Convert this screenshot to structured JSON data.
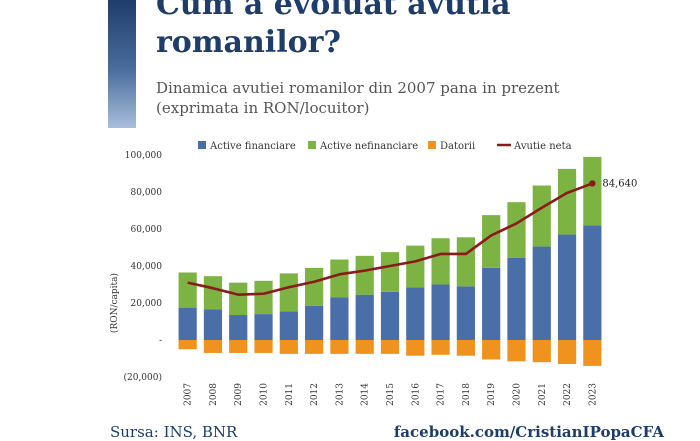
{
  "header": {
    "title": "Cum a evoluat avutia romanilor?",
    "subtitle_line1": "Dinamica avutiei romanilor din 2007 pana in prezent",
    "subtitle_line2": "(exprimata in RON/locuitor)"
  },
  "footer": {
    "source": "Sursa: INS, BNR",
    "facebook": "facebook.com/CristianIPopaCFA"
  },
  "colors": {
    "title": "#1f3d6b",
    "financiare": "#4a6ea8",
    "nefinanciare": "#7db343",
    "datorii": "#f0921e",
    "neta": "#8b1a1a"
  },
  "chart_data": {
    "type": "bar",
    "stacked": true,
    "categories": [
      "2007",
      "2008",
      "2009",
      "2010",
      "2011",
      "2012",
      "2013",
      "2014",
      "2015",
      "2016",
      "2017",
      "2018",
      "2019",
      "2020",
      "2021",
      "2022",
      "2023"
    ],
    "series": [
      {
        "name": "Active financiare",
        "type": "bar",
        "values": [
          17500,
          16500,
          13500,
          14000,
          15500,
          18500,
          23000,
          24500,
          26000,
          28500,
          30000,
          29000,
          39000,
          44500,
          50500,
          57000,
          62000
        ]
      },
      {
        "name": "Active nefinanciare",
        "type": "bar",
        "values": [
          19000,
          18000,
          17500,
          18000,
          20500,
          20500,
          20500,
          21000,
          21500,
          22500,
          25000,
          26500,
          28500,
          30000,
          33000,
          35500,
          37000
        ]
      },
      {
        "name": "Datorii",
        "type": "bar",
        "values": [
          -5000,
          -7000,
          -7000,
          -7000,
          -7500,
          -7500,
          -7500,
          -7500,
          -7500,
          -8500,
          -8000,
          -8500,
          -10500,
          -11500,
          -12000,
          -13000,
          -14000
        ]
      },
      {
        "name": "Avutie neta",
        "type": "line",
        "values": [
          31000,
          28000,
          24500,
          25000,
          28500,
          31500,
          35500,
          37500,
          40000,
          42500,
          46500,
          46500,
          56500,
          63000,
          71500,
          79500,
          84640
        ]
      }
    ],
    "ylabel": "(RON/capita)",
    "ylim": [
      -20000,
      100000
    ],
    "yticks": [
      100000,
      80000,
      60000,
      40000,
      20000,
      0,
      -20000
    ],
    "ytick_labels": [
      "100,000",
      "80,000",
      "60,000",
      "40,000",
      "20,000",
      "-",
      "(20,000)"
    ],
    "grid": false,
    "legend_position": "top",
    "annotation": {
      "text": "84,640",
      "category": "2023",
      "value": 84640
    }
  }
}
